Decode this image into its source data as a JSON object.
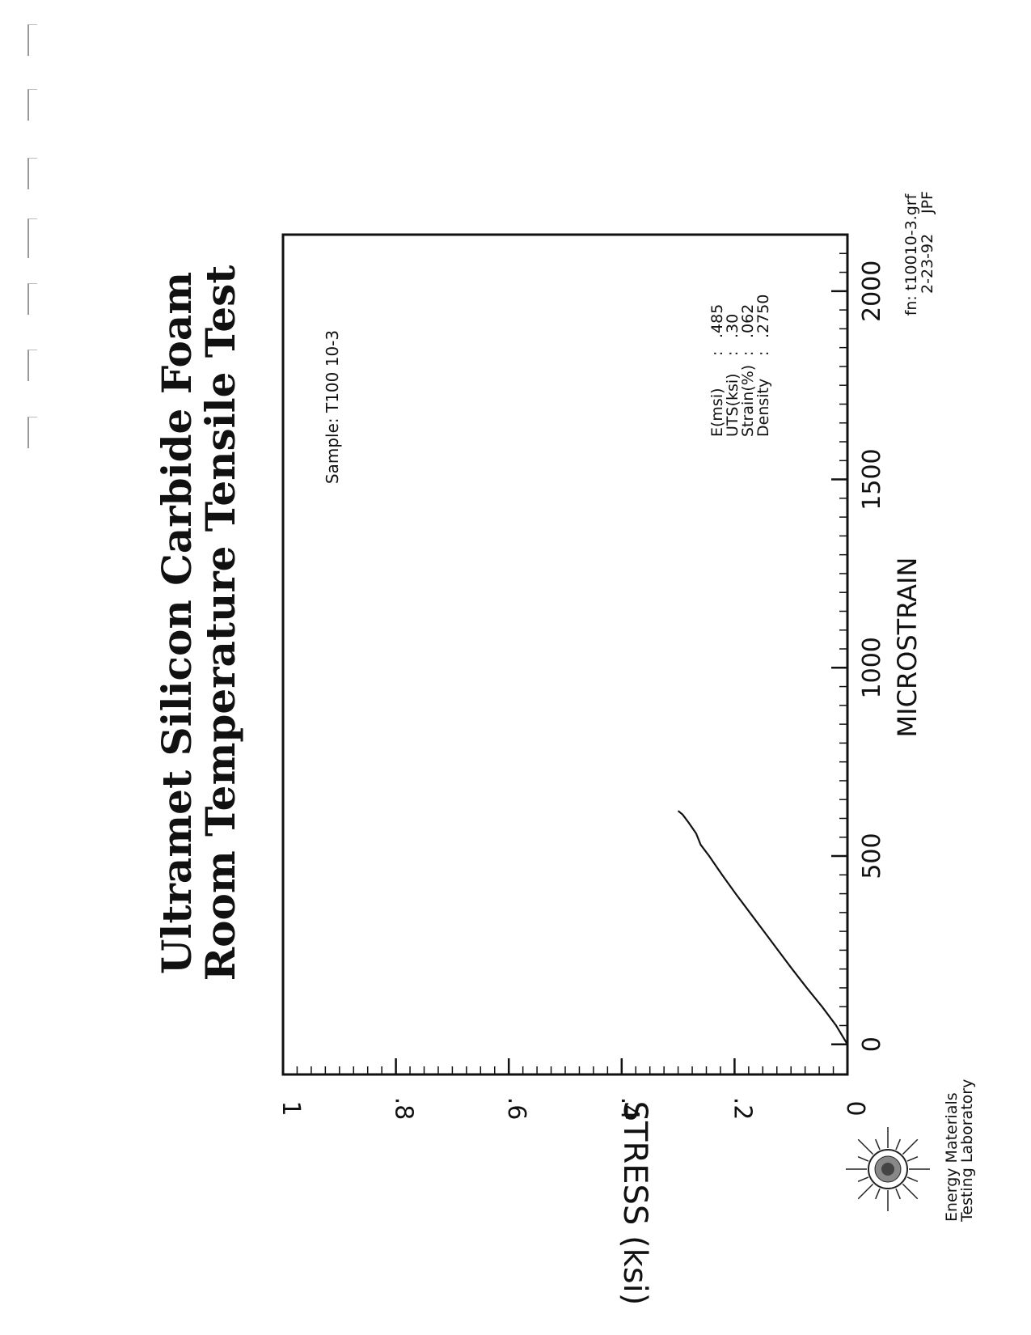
{
  "chart_data": {
    "type": "line",
    "title": "Ultramet Silicon Carbide Foam",
    "subtitle": "Room Temperature Tensile Test",
    "xlabel": "MICROSTRAIN",
    "ylabel": "STRESS (ksi)",
    "xlim": [
      -80,
      2150
    ],
    "ylim": [
      0,
      1
    ],
    "x_ticks": [
      0,
      500,
      1000,
      1500,
      2000
    ],
    "x_tick_labels": [
      "0",
      "500",
      "1000",
      "1500",
      "2000"
    ],
    "y_ticks": [
      0,
      0.2,
      0.4,
      0.6,
      0.8,
      1
    ],
    "y_tick_labels": [
      "0",
      ".2",
      ".4",
      ".6",
      ".8",
      "1"
    ],
    "grid": false,
    "series": [
      {
        "x": [
          0,
          50,
          100,
          150,
          200,
          250,
          300,
          350,
          400,
          450,
          500,
          530,
          560,
          590,
          610,
          620
        ],
        "y": [
          0,
          0.02,
          0.045,
          0.072,
          0.098,
          0.123,
          0.148,
          0.173,
          0.198,
          0.222,
          0.245,
          0.26,
          0.268,
          0.282,
          0.292,
          0.3
        ]
      }
    ]
  },
  "sample_label": "Sample: T100 10-3",
  "properties": [
    {
      "label": "E(msi)",
      "sep": ":",
      "value": ".485"
    },
    {
      "label": "UTS(ksi)",
      "sep": ":",
      "value": ".30"
    },
    {
      "label": "Strain(%)",
      "sep": ":",
      "value": ".062"
    },
    {
      "label": "Density",
      "sep": ":",
      "value": ".2750"
    }
  ],
  "file_info": {
    "filename": "fn: t10010-3.grf",
    "date": "2-23-92",
    "initials": "JPF"
  },
  "lab": {
    "line1": "Energy Materials",
    "line2": "Testing Laboratory"
  },
  "colors": {
    "ink": "#111111",
    "paper": "#ffffff"
  }
}
